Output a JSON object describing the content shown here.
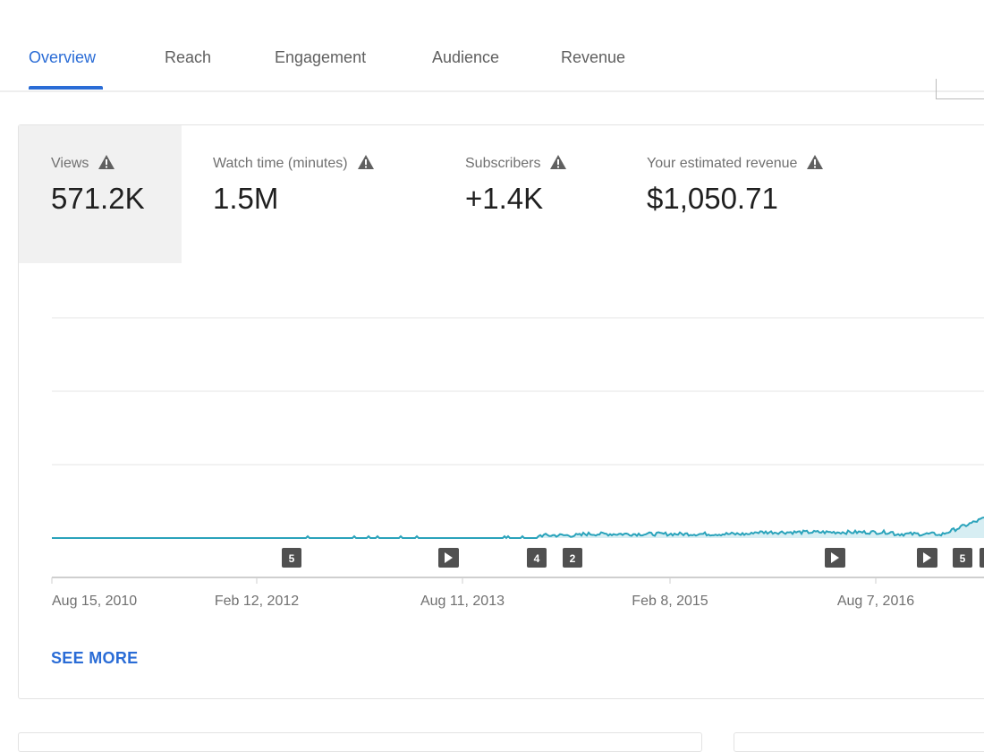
{
  "tabs": [
    "Overview",
    "Reach",
    "Engagement",
    "Audience",
    "Revenue"
  ],
  "metrics": [
    {
      "label": "Views",
      "value": "571.2K"
    },
    {
      "label": "Watch time (minutes)",
      "value": "1.5M"
    },
    {
      "label": "Subscribers",
      "value": "+1.4K"
    },
    {
      "label": "Your estimated revenue",
      "value": "$1,050.71"
    }
  ],
  "chart": {
    "x_labels": [
      "Aug 15, 2010",
      "Feb 12, 2012",
      "Aug 11, 2013",
      "Feb 8, 2015",
      "Aug 7, 2016"
    ],
    "markers": [
      "5",
      "4",
      "2",
      "5"
    ]
  },
  "see_more": "SEE MORE"
}
